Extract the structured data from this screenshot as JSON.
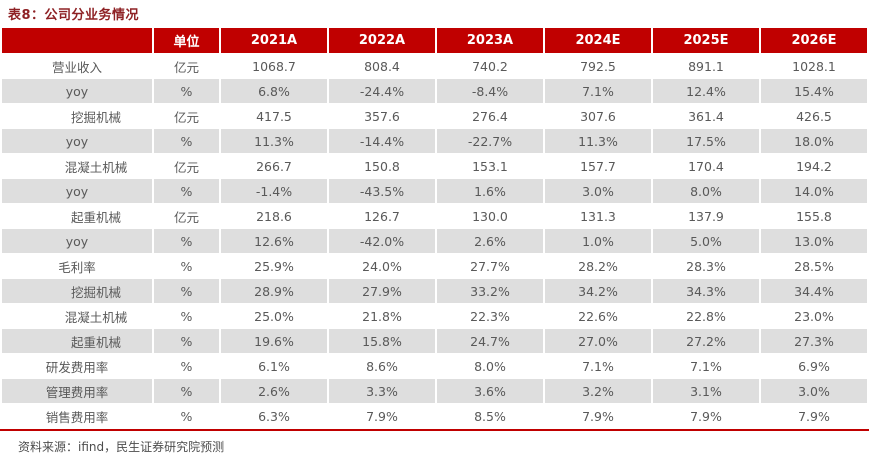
{
  "title": "表8：公司分业务情况",
  "source": "资料来源：ifind，民生证券研究院预测",
  "colors": {
    "header_bg": "#C00000",
    "title_color": "#8E2124",
    "stripe_bg": "#DEDEDE",
    "body_text": "#595959",
    "bottom_border": "#C00000"
  },
  "table": {
    "columns": [
      "",
      "单位",
      "2021A",
      "2022A",
      "2023A",
      "2024E",
      "2025E",
      "2026E"
    ],
    "rows": [
      {
        "label": "营业收入",
        "indent": false,
        "unit": "亿元",
        "values": [
          "1068.7",
          "808.4",
          "740.2",
          "792.5",
          "891.1",
          "1028.1"
        ]
      },
      {
        "label": "yoy",
        "indent": false,
        "unit": "%",
        "values": [
          "6.8%",
          "-24.4%",
          "-8.4%",
          "7.1%",
          "12.4%",
          "15.4%"
        ]
      },
      {
        "label": "挖掘机械",
        "indent": true,
        "unit": "亿元",
        "values": [
          "417.5",
          "357.6",
          "276.4",
          "307.6",
          "361.4",
          "426.5"
        ]
      },
      {
        "label": "yoy",
        "indent": false,
        "unit": "%",
        "values": [
          "11.3%",
          "-14.4%",
          "-22.7%",
          "11.3%",
          "17.5%",
          "18.0%"
        ]
      },
      {
        "label": "混凝土机械",
        "indent": true,
        "unit": "亿元",
        "values": [
          "266.7",
          "150.8",
          "153.1",
          "157.7",
          "170.4",
          "194.2"
        ]
      },
      {
        "label": "yoy",
        "indent": false,
        "unit": "%",
        "values": [
          "-1.4%",
          "-43.5%",
          "1.6%",
          "3.0%",
          "8.0%",
          "14.0%"
        ]
      },
      {
        "label": "起重机械",
        "indent": true,
        "unit": "亿元",
        "values": [
          "218.6",
          "126.7",
          "130.0",
          "131.3",
          "137.9",
          "155.8"
        ]
      },
      {
        "label": "yoy",
        "indent": false,
        "unit": "%",
        "values": [
          "12.6%",
          "-42.0%",
          "2.6%",
          "1.0%",
          "5.0%",
          "13.0%"
        ]
      },
      {
        "label": "毛利率",
        "indent": false,
        "unit": "%",
        "values": [
          "25.9%",
          "24.0%",
          "27.7%",
          "28.2%",
          "28.3%",
          "28.5%"
        ]
      },
      {
        "label": "挖掘机械",
        "indent": true,
        "unit": "%",
        "values": [
          "28.9%",
          "27.9%",
          "33.2%",
          "34.2%",
          "34.3%",
          "34.4%"
        ]
      },
      {
        "label": "混凝土机械",
        "indent": true,
        "unit": "%",
        "values": [
          "25.0%",
          "21.8%",
          "22.3%",
          "22.6%",
          "22.8%",
          "23.0%"
        ]
      },
      {
        "label": "起重机械",
        "indent": true,
        "unit": "%",
        "values": [
          "19.6%",
          "15.8%",
          "24.7%",
          "27.0%",
          "27.2%",
          "27.3%"
        ]
      },
      {
        "label": "研发费用率",
        "indent": false,
        "unit": "%",
        "values": [
          "6.1%",
          "8.6%",
          "8.0%",
          "7.1%",
          "7.1%",
          "6.9%"
        ]
      },
      {
        "label": "管理费用率",
        "indent": false,
        "unit": "%",
        "values": [
          "2.6%",
          "3.3%",
          "3.6%",
          "3.2%",
          "3.1%",
          "3.0%"
        ]
      },
      {
        "label": "销售费用率",
        "indent": false,
        "unit": "%",
        "values": [
          "6.3%",
          "7.9%",
          "8.5%",
          "7.9%",
          "7.9%",
          "7.9%"
        ]
      }
    ]
  }
}
